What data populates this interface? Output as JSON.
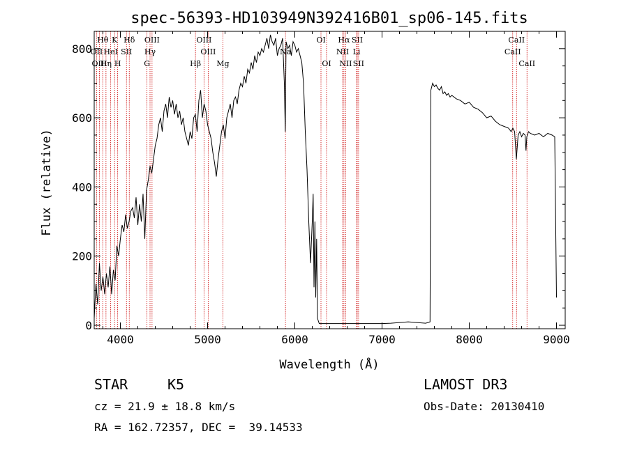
{
  "chart_data": {
    "type": "line",
    "title": "spec-56393-HD103949N392416B01_sp06-145.fits",
    "xlabel": "Wavelength (Å)",
    "ylabel": "Flux (relative)",
    "xlim": [
      3700,
      9100
    ],
    "ylim": [
      -10,
      850
    ],
    "xticks": [
      4000,
      5000,
      6000,
      7000,
      8000,
      9000
    ],
    "yticks": [
      0,
      200,
      400,
      600,
      800
    ],
    "grid": false,
    "series": [
      {
        "x": [
          3700,
          3720,
          3740,
          3760,
          3780,
          3800,
          3820,
          3840,
          3860,
          3880,
          3900,
          3920,
          3940,
          3960,
          3980,
          4000,
          4020,
          4040,
          4060,
          4080,
          4100,
          4120,
          4140,
          4160,
          4180,
          4200,
          4220,
          4240,
          4260,
          4280,
          4300,
          4320,
          4340,
          4360,
          4380,
          4400,
          4420,
          4440,
          4460,
          4480,
          4500,
          4520,
          4540,
          4560,
          4580,
          4600,
          4620,
          4640,
          4660,
          4680,
          4700,
          4720,
          4740,
          4760,
          4780,
          4800,
          4820,
          4840,
          4860,
          4880,
          4900,
          4920,
          4940,
          4960,
          4980,
          5000,
          5020,
          5040,
          5060,
          5080,
          5100,
          5120,
          5140,
          5160,
          5180,
          5200,
          5220,
          5240,
          5260,
          5280,
          5300,
          5320,
          5340,
          5360,
          5380,
          5400,
          5420,
          5440,
          5460,
          5480,
          5500,
          5520,
          5540,
          5560,
          5580,
          5600,
          5620,
          5640,
          5660,
          5680,
          5700,
          5720,
          5740,
          5760,
          5780,
          5800,
          5820,
          5840,
          5860,
          5880,
          5890,
          5900,
          5920,
          5940,
          5960,
          5980,
          6000,
          6020,
          6040,
          6060,
          6080,
          6100,
          6120,
          6140,
          6160,
          6180,
          6200,
          6210,
          6220,
          6230,
          6240,
          6250,
          6260,
          6280,
          6300,
          6400,
          6500,
          6600,
          6700,
          6800,
          6900,
          7000,
          7100,
          7200,
          7300,
          7400,
          7500,
          7550,
          7560,
          7580,
          7600,
          7620,
          7640,
          7660,
          7680,
          7700,
          7720,
          7740,
          7760,
          7780,
          7800,
          7850,
          7900,
          7950,
          8000,
          8050,
          8100,
          8150,
          8200,
          8250,
          8300,
          8350,
          8400,
          8450,
          8480,
          8500,
          8520,
          8540,
          8560,
          8580,
          8600,
          8620,
          8640,
          8650,
          8660,
          8680,
          8700,
          8750,
          8800,
          8850,
          8900,
          8950,
          8980,
          9000
        ],
        "y": [
          20,
          120,
          60,
          180,
          100,
          140,
          90,
          150,
          110,
          170,
          90,
          160,
          130,
          230,
          200,
          250,
          290,
          270,
          320,
          280,
          300,
          330,
          340,
          310,
          370,
          290,
          350,
          300,
          380,
          250,
          390,
          420,
          460,
          440,
          480,
          520,
          540,
          580,
          600,
          560,
          620,
          640,
          600,
          660,
          630,
          650,
          610,
          640,
          600,
          620,
          580,
          600,
          560,
          540,
          520,
          560,
          540,
          600,
          610,
          560,
          650,
          680,
          600,
          640,
          620,
          580,
          560,
          540,
          500,
          470,
          430,
          480,
          520,
          560,
          580,
          540,
          600,
          620,
          640,
          600,
          650,
          660,
          640,
          680,
          700,
          690,
          720,
          700,
          740,
          730,
          760,
          740,
          780,
          760,
          790,
          780,
          800,
          790,
          810,
          830,
          800,
          840,
          820,
          810,
          830,
          780,
          800,
          810,
          830,
          700,
          560,
          820,
          800,
          810,
          780,
          820,
          810,
          790,
          800,
          780,
          760,
          700,
          560,
          450,
          300,
          180,
          300,
          380,
          110,
          300,
          80,
          250,
          20,
          5,
          5,
          5,
          5,
          5,
          5,
          5,
          5,
          5,
          6,
          8,
          10,
          8,
          6,
          10,
          680,
          700,
          690,
          695,
          685,
          680,
          690,
          670,
          675,
          665,
          670,
          660,
          665,
          655,
          650,
          640,
          645,
          630,
          625,
          615,
          600,
          605,
          590,
          580,
          575,
          570,
          560,
          570,
          560,
          480,
          550,
          560,
          545,
          555,
          550,
          505,
          545,
          560,
          555,
          550,
          555,
          545,
          555,
          550,
          545,
          80
        ]
      }
    ],
    "spectral_lines": [
      {
        "label": "Hθ",
        "x": 3798,
        "row": 0
      },
      {
        "label": "OII",
        "x": 3727,
        "row": 1
      },
      {
        "label": "OIII",
        "x": 3760,
        "row": 2
      },
      {
        "label": "K",
        "x": 3934,
        "row": 0
      },
      {
        "label": "HeI",
        "x": 3889,
        "row": 1
      },
      {
        "label": "Hη",
        "x": 3835,
        "row": 2
      },
      {
        "label": "SII",
        "x": 4070,
        "row": 1
      },
      {
        "label": "H",
        "x": 3969,
        "row": 2
      },
      {
        "label": "Hδ",
        "x": 4102,
        "row": 0
      },
      {
        "label": "OIII",
        "x": 4363,
        "row": 0
      },
      {
        "label": "Hγ",
        "x": 4340,
        "row": 1
      },
      {
        "label": "G",
        "x": 4305,
        "row": 2
      },
      {
        "label": "Hβ",
        "x": 4861,
        "row": 2
      },
      {
        "label": "OIII",
        "x": 4959,
        "row": 0
      },
      {
        "label": "OIII",
        "x": 5007,
        "row": 1
      },
      {
        "label": "Mg",
        "x": 5175,
        "row": 2
      },
      {
        "label": "Na",
        "x": 5893,
        "row": 1
      },
      {
        "label": "OI",
        "x": 6300,
        "row": 0
      },
      {
        "label": "OI",
        "x": 6364,
        "row": 2
      },
      {
        "label": "Hα",
        "x": 6563,
        "row": 0
      },
      {
        "label": "NII",
        "x": 6548,
        "row": 1
      },
      {
        "label": "NII",
        "x": 6583,
        "row": 2
      },
      {
        "label": "SII",
        "x": 6716,
        "row": 0
      },
      {
        "label": "Li",
        "x": 6708,
        "row": 1
      },
      {
        "label": "SII",
        "x": 6731,
        "row": 2
      },
      {
        "label": "CaII",
        "x": 8542,
        "row": 0
      },
      {
        "label": "CaII",
        "x": 8498,
        "row": 1
      },
      {
        "label": "CaII",
        "x": 8662,
        "row": 2
      }
    ]
  },
  "info": {
    "class": "STAR",
    "subclass": "K5",
    "survey": "LAMOST DR3",
    "cz": "cz = 21.9 ± 18.8 km/s",
    "obs_date": "Obs-Date: 20130410",
    "radec": "RA = 162.72357, DEC =  39.14533"
  },
  "colors": {
    "spectrum": "#000000",
    "line_markers": "#cc0000"
  }
}
